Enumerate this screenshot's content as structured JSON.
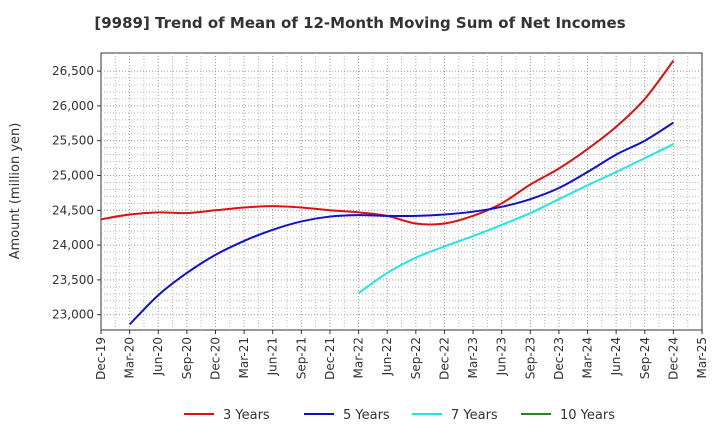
{
  "chart_data": {
    "type": "line",
    "title": "[9989]  Trend of Mean of 12-Month Moving Sum of Net Incomes",
    "xlabel": "",
    "ylabel": "Amount (million yen)",
    "ylim": [
      22780,
      26760
    ],
    "y_ticks": [
      23000,
      23500,
      24000,
      24500,
      25000,
      25500,
      26000,
      26500
    ],
    "y_tick_labels": [
      "23,000",
      "23,500",
      "24,000",
      "24,500",
      "25,000",
      "25,500",
      "26,000",
      "26,500"
    ],
    "x_tick_labels": [
      "Dec-19",
      "Mar-20",
      "Jun-20",
      "Sep-20",
      "Dec-20",
      "Mar-21",
      "Jun-21",
      "Sep-21",
      "Dec-21",
      "Mar-22",
      "Jun-22",
      "Sep-22",
      "Dec-22",
      "Mar-23",
      "Jun-23",
      "Sep-23",
      "Dec-23",
      "Mar-24",
      "Jun-24",
      "Sep-24",
      "Dec-24",
      "Mar-25"
    ],
    "grid": true,
    "legend_position": "bottom",
    "series": [
      {
        "name": "3 Years",
        "color": "#dd1111",
        "x": [
          "Dec-19",
          "Mar-20",
          "Jun-20",
          "Sep-20",
          "Dec-20",
          "Mar-21",
          "Jun-21",
          "Sep-21",
          "Dec-21",
          "Mar-22",
          "Jun-22",
          "Sep-22",
          "Dec-22",
          "Mar-23",
          "Jun-23",
          "Sep-23",
          "Dec-23",
          "Mar-24",
          "Jun-24",
          "Sep-24",
          "Dec-24"
        ],
        "values": [
          24370,
          24440,
          24470,
          24460,
          24500,
          24540,
          24560,
          24540,
          24500,
          24470,
          24420,
          24310,
          24310,
          24420,
          24600,
          24870,
          25100,
          25380,
          25700,
          26100,
          26650
        ]
      },
      {
        "name": "5 Years",
        "color": "#1111cc",
        "x": [
          "Mar-20",
          "Jun-20",
          "Sep-20",
          "Dec-20",
          "Mar-21",
          "Jun-21",
          "Sep-21",
          "Dec-21",
          "Mar-22",
          "Jun-22",
          "Sep-22",
          "Dec-22",
          "Mar-23",
          "Jun-23",
          "Sep-23",
          "Dec-23",
          "Mar-24",
          "Jun-24",
          "Sep-24",
          "Dec-24"
        ],
        "values": [
          22860,
          23280,
          23600,
          23860,
          24060,
          24220,
          24340,
          24410,
          24430,
          24420,
          24420,
          24440,
          24480,
          24550,
          24660,
          24820,
          25050,
          25300,
          25500,
          25760
        ]
      },
      {
        "name": "7 Years",
        "color": "#22e5e5",
        "x": [
          "Mar-22",
          "Jun-22",
          "Sep-22",
          "Dec-22",
          "Mar-23",
          "Jun-23",
          "Sep-23",
          "Dec-23",
          "Mar-24",
          "Jun-24",
          "Sep-24",
          "Dec-24"
        ],
        "values": [
          23310,
          23600,
          23820,
          23980,
          24130,
          24290,
          24460,
          24660,
          24860,
          25050,
          25250,
          25450
        ]
      },
      {
        "name": "10 Years",
        "color": "#228822",
        "x": [],
        "values": []
      }
    ]
  }
}
